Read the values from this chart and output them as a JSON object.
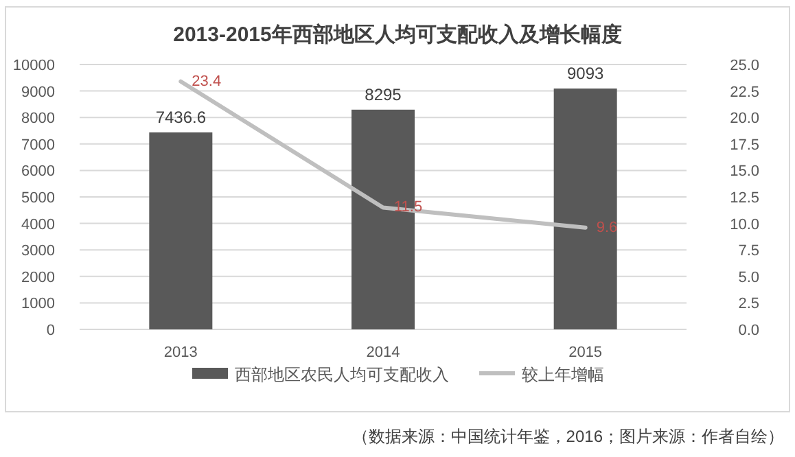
{
  "chart_data": {
    "type": "bar",
    "title": "2013-2015年西部地区人均可支配收入及增长幅度",
    "categories": [
      "2013",
      "2014",
      "2015"
    ],
    "series": [
      {
        "name": "西部地区农民人均可支配收入",
        "color": "#595959",
        "values": [
          7436.6,
          8295,
          9093
        ]
      },
      {
        "name": "较上年增幅",
        "type": "line",
        "axis": "y2",
        "color": "#bfbfbf",
        "values": [
          23.4,
          11.5,
          9.6
        ]
      }
    ],
    "ylim": [
      0,
      10000
    ],
    "yticks": [
      0,
      1000,
      2000,
      3000,
      4000,
      5000,
      6000,
      7000,
      8000,
      9000,
      10000
    ],
    "y2lim": [
      0,
      25
    ],
    "y2ticks": [
      {
        "value": 0,
        "label": "0.0"
      },
      {
        "value": 2.5,
        "label": "2.5"
      },
      {
        "value": 5,
        "label": "5.0"
      },
      {
        "value": 7.5,
        "label": "7.5"
      },
      {
        "value": 10,
        "label": "10.0"
      },
      {
        "value": 12.5,
        "label": "12.5"
      },
      {
        "value": 15,
        "label": "15.0"
      },
      {
        "value": 17.5,
        "label": "17.5"
      },
      {
        "value": 20,
        "label": "20.0"
      },
      {
        "value": 22.5,
        "label": "22.5"
      },
      {
        "value": 25,
        "label": "25.0"
      }
    ],
    "grid": "y",
    "legend": "bottom",
    "data_labels": true,
    "marker": "none",
    "annotations": [
      "（数据来源：中国统计年鉴，2016；图片来源：作者自绘）"
    ]
  }
}
